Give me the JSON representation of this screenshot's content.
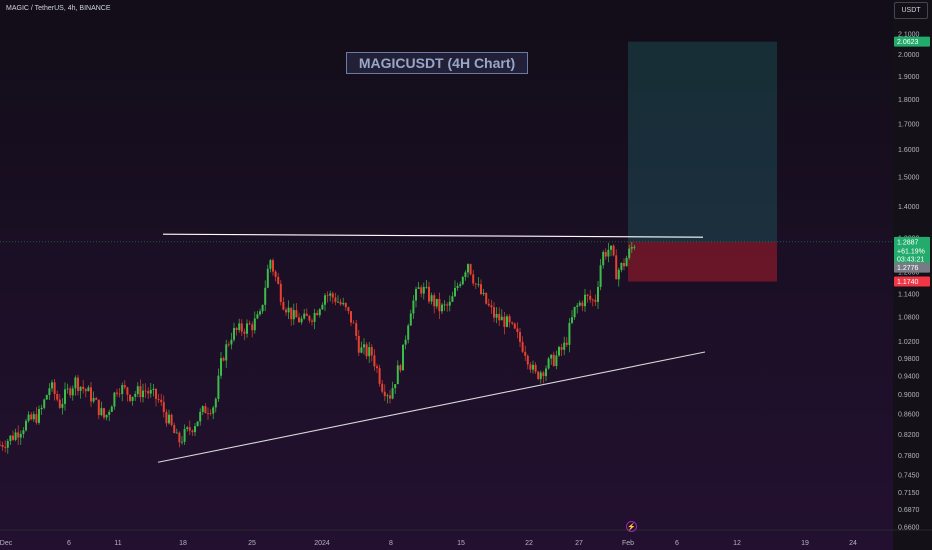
{
  "header": {
    "symbol": "MAGIC / TetherUS, 4h, BINANCE",
    "currency": "USDT"
  },
  "chart_data": {
    "type": "candlestick",
    "title": "MAGICUSDT (4H Chart)",
    "yscale": "log",
    "ylim": [
      0.655,
      2.17
    ],
    "y_ticks": [
      "2.1000",
      "2.0000",
      "1.9000",
      "1.8000",
      "1.7000",
      "1.6000",
      "1.5000",
      "1.4000",
      "1.3000",
      "1.2000",
      "1.1400",
      "1.0800",
      "1.0200",
      "0.9800",
      "0.9400",
      "0.9000",
      "0.8600",
      "0.8200",
      "0.7800",
      "0.7450",
      "0.7150",
      "0.6870",
      "0.6600"
    ],
    "x_ticks": [
      {
        "label": "Dec",
        "pos": 0.0
      },
      {
        "label": "6",
        "pos": 0.063
      },
      {
        "label": "11",
        "pos": 0.112
      },
      {
        "label": "18",
        "pos": 0.177
      },
      {
        "label": "25",
        "pos": 0.246
      },
      {
        "label": "2024",
        "pos": 0.316
      },
      {
        "label": "8",
        "pos": 0.385
      },
      {
        "label": "15",
        "pos": 0.455
      },
      {
        "label": "22",
        "pos": 0.523
      },
      {
        "label": "27",
        "pos": 0.573
      },
      {
        "label": "Feb",
        "pos": 0.622
      },
      {
        "label": "6",
        "pos": 0.671
      },
      {
        "label": "12",
        "pos": 0.731
      },
      {
        "label": "19",
        "pos": 0.799
      },
      {
        "label": "24",
        "pos": 0.847
      }
    ],
    "price_path": [
      [
        0.0,
        0.8
      ],
      [
        0.012,
        0.815
      ],
      [
        0.025,
        0.84
      ],
      [
        0.04,
        0.86
      ],
      [
        0.05,
        0.92
      ],
      [
        0.06,
        0.88
      ],
      [
        0.075,
        0.93
      ],
      [
        0.09,
        0.9
      ],
      [
        0.105,
        0.85
      ],
      [
        0.118,
        0.92
      ],
      [
        0.13,
        0.9
      ],
      [
        0.145,
        0.91
      ],
      [
        0.158,
        0.89
      ],
      [
        0.17,
        0.84
      ],
      [
        0.178,
        0.805
      ],
      [
        0.19,
        0.83
      ],
      [
        0.205,
        0.87
      ],
      [
        0.215,
        0.88
      ],
      [
        0.222,
        0.98
      ],
      [
        0.232,
        1.04
      ],
      [
        0.242,
        1.05
      ],
      [
        0.252,
        1.06
      ],
      [
        0.26,
        1.08
      ],
      [
        0.27,
        1.24
      ],
      [
        0.276,
        1.18
      ],
      [
        0.283,
        1.12
      ],
      [
        0.293,
        1.08
      ],
      [
        0.303,
        1.07
      ],
      [
        0.315,
        1.09
      ],
      [
        0.325,
        1.14
      ],
      [
        0.335,
        1.13
      ],
      [
        0.345,
        1.1
      ],
      [
        0.352,
        1.07
      ],
      [
        0.36,
        1.0
      ],
      [
        0.372,
        0.99
      ],
      [
        0.382,
        0.92
      ],
      [
        0.39,
        0.9
      ],
      [
        0.402,
        0.98
      ],
      [
        0.41,
        1.1
      ],
      [
        0.42,
        1.16
      ],
      [
        0.43,
        1.13
      ],
      [
        0.44,
        1.1
      ],
      [
        0.45,
        1.11
      ],
      [
        0.46,
        1.18
      ],
      [
        0.468,
        1.23
      ],
      [
        0.475,
        1.17
      ],
      [
        0.485,
        1.12
      ],
      [
        0.495,
        1.08
      ],
      [
        0.505,
        1.07
      ],
      [
        0.515,
        1.04
      ],
      [
        0.525,
        1.0
      ],
      [
        0.535,
        0.94
      ],
      [
        0.545,
        0.96
      ],
      [
        0.555,
        0.98
      ],
      [
        0.565,
        1.01
      ],
      [
        0.575,
        1.1
      ],
      [
        0.585,
        1.13
      ],
      [
        0.595,
        1.12
      ],
      [
        0.602,
        1.25
      ],
      [
        0.61,
        1.27
      ],
      [
        0.616,
        1.2
      ],
      [
        0.623,
        1.22
      ],
      [
        0.628,
        1.25
      ],
      [
        0.635,
        1.2887
      ]
    ],
    "trendlines": [
      {
        "name": "resistance",
        "color": "#ffffff",
        "from": [
          0.163,
          1.312
        ],
        "to": [
          0.703,
          1.303
        ]
      },
      {
        "name": "support",
        "color": "#d8d8d8",
        "from": [
          0.158,
          0.768
        ],
        "to": [
          0.705,
          0.995
        ]
      }
    ],
    "position": {
      "entry": 1.2887,
      "target": 2.0623,
      "stop": 1.174,
      "x_from": 0.628,
      "x_to": 0.777
    },
    "price_tags": [
      {
        "value": "2.0623",
        "price": 2.0623,
        "color": "#22ab6a"
      },
      {
        "value": "1.2887",
        "price": 1.2887,
        "color": "#22ab6a"
      },
      {
        "value": "+61.19%",
        "price": 1.262,
        "color": "#22ab6a"
      },
      {
        "value": "03:43:21",
        "price": 1.238,
        "color": "#22ab6a"
      },
      {
        "value": "1.2776",
        "price": 1.213,
        "color": "#787b86"
      },
      {
        "value": "1.1740",
        "price": 1.174,
        "color": "#f23645"
      }
    ],
    "up_color": "#26a69a",
    "candle_up": "#3cbd4a",
    "candle_down": "#e8412f"
  }
}
